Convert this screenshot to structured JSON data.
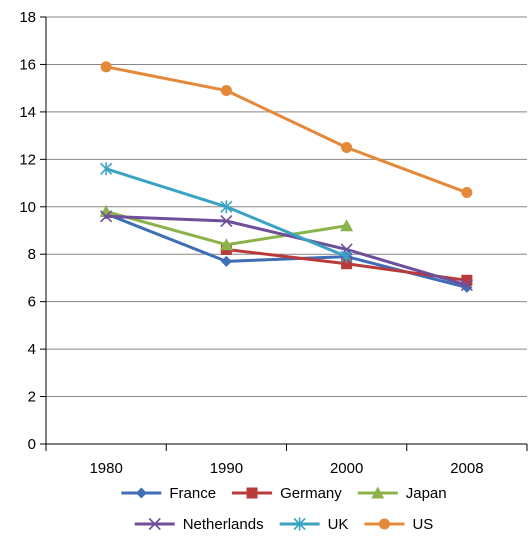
{
  "chart_data": {
    "type": "line",
    "title": "",
    "xlabel": "",
    "ylabel": "",
    "categories": [
      "1980",
      "1990",
      "2000",
      "2008"
    ],
    "ylim": [
      0,
      18
    ],
    "yticks": [
      0,
      2,
      4,
      6,
      8,
      10,
      12,
      14,
      16,
      18
    ],
    "grid": "horizontal",
    "legend_position": "bottom",
    "series": [
      {
        "name": "France",
        "color": "#3f6eb6",
        "marker": "diamond",
        "values": [
          9.7,
          7.7,
          7.9,
          6.6
        ]
      },
      {
        "name": "Germany",
        "color": "#b83a3a",
        "marker": "square",
        "values": [
          null,
          8.2,
          7.6,
          6.9
        ]
      },
      {
        "name": "Japan",
        "color": "#8cb24a",
        "marker": "triangle",
        "values": [
          9.8,
          8.4,
          9.2,
          null
        ]
      },
      {
        "name": "Netherlands",
        "color": "#6f4f9a",
        "marker": "x",
        "values": [
          9.6,
          9.4,
          8.2,
          6.7
        ]
      },
      {
        "name": "UK",
        "color": "#3aa3c3",
        "marker": "asterisk",
        "values": [
          11.6,
          10.0,
          7.9,
          null
        ]
      },
      {
        "name": "US",
        "color": "#e4893a",
        "marker": "circle",
        "values": [
          15.9,
          14.9,
          12.5,
          10.6
        ]
      }
    ]
  }
}
